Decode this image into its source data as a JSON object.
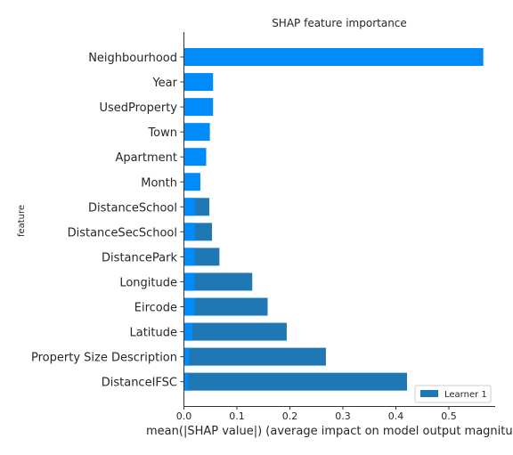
{
  "chart_data": {
    "type": "bar",
    "orientation": "horizontal",
    "title": "SHAP feature importance",
    "xlabel": "mean(|SHAP value|) (average impact on model output magnitude)",
    "ylabel": "feature",
    "xlim": [
      0,
      0.59
    ],
    "xticks": [
      "0.0",
      "0.1",
      "0.2",
      "0.3",
      "0.4",
      "0.5"
    ],
    "grid": false,
    "legend": {
      "location": "lower-right",
      "entries": [
        "Learner 1"
      ]
    },
    "categories": [
      "Neighbourhood",
      "Year",
      "UsedProperty",
      "Town",
      "Apartment",
      "Month",
      "DistanceSchool",
      "DistanceSecSchool",
      "DistancePark",
      "Longitude",
      "Eircode",
      "Latitude",
      "Property Size Description",
      "DistanceIFSC"
    ],
    "series": [
      {
        "name": "Learner 1",
        "color": "#1f77b4",
        "values": [
          0.0,
          0.0,
          0.0,
          0.0,
          0.0,
          0.0,
          0.048,
          0.053,
          0.067,
          0.129,
          0.158,
          0.194,
          0.268,
          0.421
        ]
      }
    ],
    "overlay_series": {
      "color": "#008bfb",
      "values": [
        0.565,
        0.055,
        0.055,
        0.049,
        0.042,
        0.031,
        0.021,
        0.021,
        0.02,
        0.02,
        0.02,
        0.016,
        0.01,
        0.008
      ]
    }
  }
}
